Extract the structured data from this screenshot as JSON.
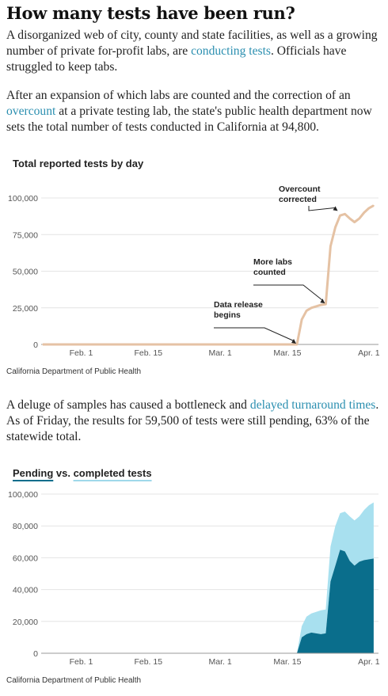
{
  "headline": "How many tests have been run?",
  "para1": {
    "text_before": "A disorganized web of city, county and state facilities, as well as a growing number of private for-profit labs, are ",
    "link": "conducting tests",
    "text_after": ". Officials have struggled to keep tabs."
  },
  "para2": {
    "text_before": "After an expansion of which labs are counted and the correction of an ",
    "link": "overcount",
    "text_after": " at a private testing lab, the state's public health department now sets the total number of tests conducted in California at 94,800."
  },
  "para3": {
    "text_before": "A deluge of samples has caused a bottleneck and ",
    "link": "delayed turnaround times",
    "text_after": ". As of Friday, the results for 59,500 of tests were still pending, 63% of the statewide total."
  },
  "colors": {
    "link": "#2b8fb0",
    "total_line": "#e5c2a4",
    "pending": "#0a6e8c",
    "completed": "#a8e0ef"
  },
  "chart_data": [
    {
      "type": "line",
      "title": "Total reported tests by day",
      "source": "California Department of Public Health",
      "x_ticks": [
        "Feb. 1",
        "Feb. 15",
        "Mar. 1",
        "Mar. 15",
        "Apr. 1"
      ],
      "y_ticks": [
        "100,000",
        "75,000",
        "50,000",
        "25,000",
        "0"
      ],
      "ylim": [
        0,
        100000
      ],
      "x_unit": "days since Jan. 24",
      "xlim": [
        0,
        70
      ],
      "x_tick_values": [
        8,
        22,
        37,
        51,
        68
      ],
      "y_tick_values": [
        100000,
        75000,
        50000,
        25000,
        0
      ],
      "grid": true,
      "series": [
        {
          "name": "Total tests",
          "x": [
            0,
            10,
            20,
            30,
            40,
            50,
            53,
            54,
            55,
            56,
            57,
            58,
            59,
            60,
            61,
            62,
            63,
            64,
            65,
            66,
            67,
            68,
            69
          ],
          "y": [
            0,
            0,
            0,
            0,
            0,
            0,
            0,
            17000,
            23000,
            25000,
            26000,
            27000,
            27500,
            67000,
            80000,
            88000,
            89000,
            86000,
            83500,
            86000,
            90000,
            93000,
            94800
          ]
        }
      ],
      "annotations": [
        {
          "line1": "Overcount",
          "line2": "corrected",
          "x": 62,
          "y": 89000
        },
        {
          "line1": "More labs",
          "line2": "counted",
          "x": 59,
          "y": 27500
        },
        {
          "line1": "Data release",
          "line2": "begins",
          "x": 53,
          "y": 0
        }
      ]
    },
    {
      "type": "area",
      "title_pending": "Pending",
      "title_vs": " vs. ",
      "title_completed": "completed tests",
      "source": "California Department of Public Health",
      "x_ticks": [
        "Feb. 1",
        "Feb. 15",
        "Mar. 1",
        "Mar. 15",
        "Apr. 1"
      ],
      "y_ticks": [
        "100,000",
        "80,000",
        "60,000",
        "40,000",
        "20,000",
        "0"
      ],
      "ylim": [
        0,
        100000
      ],
      "x_unit": "days since Jan. 24",
      "xlim": [
        0,
        70
      ],
      "x_tick_values": [
        8,
        22,
        37,
        51,
        68
      ],
      "y_tick_values": [
        100000,
        80000,
        60000,
        40000,
        20000,
        0
      ],
      "grid": true,
      "x": [
        53,
        54,
        55,
        56,
        57,
        58,
        59,
        60,
        61,
        62,
        63,
        64,
        65,
        66,
        67,
        68,
        69
      ],
      "series": [
        {
          "name": "Pending",
          "values": [
            0,
            10000,
            12000,
            13000,
            12500,
            12000,
            12500,
            45000,
            55000,
            65000,
            64000,
            58000,
            55000,
            57500,
            58500,
            59000,
            59500
          ]
        },
        {
          "name": "Completed",
          "values": [
            0,
            7000,
            11000,
            12000,
            13500,
            15000,
            15000,
            22000,
            25000,
            23000,
            25000,
            28000,
            28500,
            28500,
            31500,
            34000,
            35300
          ]
        }
      ]
    }
  ]
}
